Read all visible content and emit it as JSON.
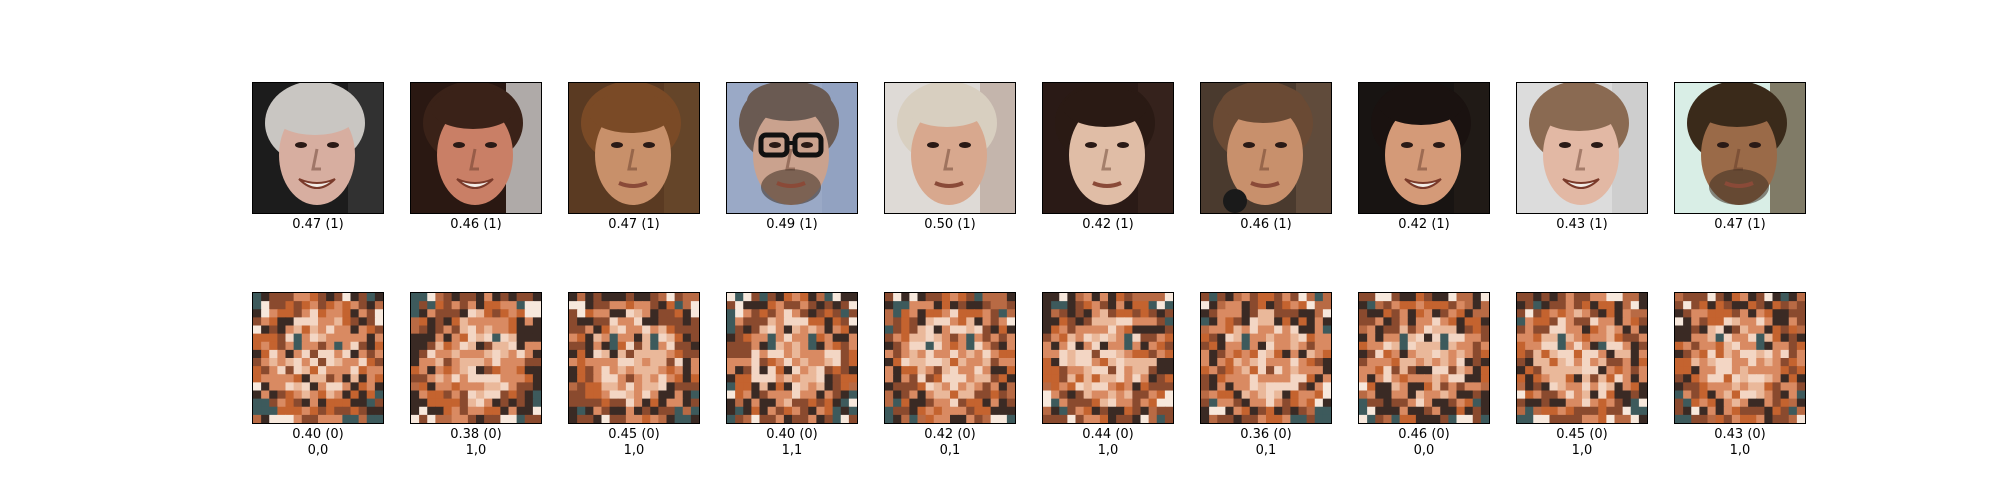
{
  "real_row": [
    {
      "score": "0.47 (1)",
      "tone": "gray-haired-man"
    },
    {
      "score": "0.46 (1)",
      "tone": "young-man-smiling"
    },
    {
      "score": "0.47 (1)",
      "tone": "woman-auburn-hair"
    },
    {
      "score": "0.49 (1)",
      "tone": "man-with-glasses"
    },
    {
      "score": "0.50 (1)",
      "tone": "blond-man"
    },
    {
      "score": "0.42 (1)",
      "tone": "dark-haired-woman"
    },
    {
      "score": "0.46 (1)",
      "tone": "man-with-microphone"
    },
    {
      "score": "0.42 (1)",
      "tone": "smiling-woman"
    },
    {
      "score": "0.43 (1)",
      "tone": "woman-light-background"
    },
    {
      "score": "0.47 (1)",
      "tone": "curly-haired-man"
    }
  ],
  "fake_row": [
    {
      "score": "0.40 (0)",
      "label": "0,0"
    },
    {
      "score": "0.38 (0)",
      "label": "1,0"
    },
    {
      "score": "0.45 (0)",
      "label": "1,0"
    },
    {
      "score": "0.40 (0)",
      "label": "1,1"
    },
    {
      "score": "0.42 (0)",
      "label": "0,1"
    },
    {
      "score": "0.44 (0)",
      "label": "1,0"
    },
    {
      "score": "0.36 (0)",
      "label": "0,1"
    },
    {
      "score": "0.46 (0)",
      "label": "0,0"
    },
    {
      "score": "0.45 (0)",
      "label": "1,0"
    },
    {
      "score": "0.43 (0)",
      "label": "1,0"
    }
  ],
  "palette": {
    "skin_light": "#e8c1a6",
    "skin_mid": "#c98b6a",
    "skin_dark": "#8a5a40",
    "hair_dark": "#2a1a14",
    "hair_gray": "#c9c6c2",
    "bg_blue": "#9aa9c6",
    "bg_light": "#dedad6",
    "bg_mint": "#d9eee6",
    "noise_teal": "#3d5a5c",
    "noise_orange": "#c4632f"
  }
}
